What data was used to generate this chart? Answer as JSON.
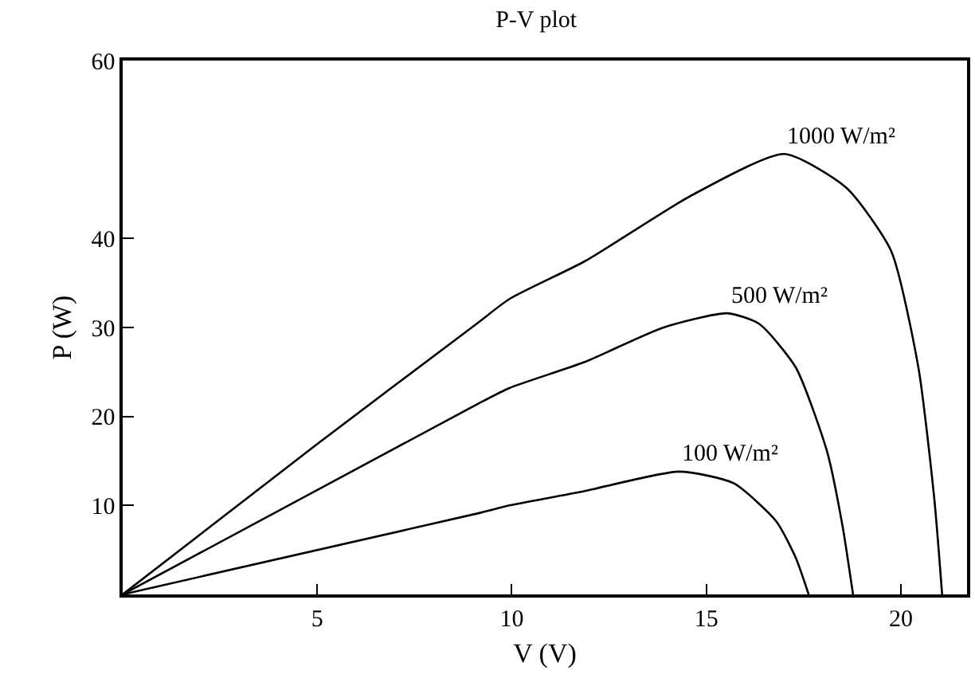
{
  "chart_data": {
    "type": "line",
    "title": "P-V plot",
    "xlabel": "V (V)",
    "ylabel": "P (W)",
    "xlim": [
      0,
      21.7
    ],
    "ylim": [
      0,
      60
    ],
    "xticks": [
      5,
      10,
      15,
      20
    ],
    "yticks": [
      10,
      20,
      30,
      40,
      60
    ],
    "grid": false,
    "legend": false,
    "marker": "none",
    "line_style": "solid",
    "series": [
      {
        "name": "1000 W/m²",
        "color": "#000000",
        "x": [
          0,
          5,
          9.12,
          9.94,
          11.9,
          14.6,
          17.0,
          18.6,
          19.75,
          20.45,
          20.86,
          21.06
        ],
        "values": [
          0,
          16.9,
          30.5,
          33.2,
          37.5,
          44.8,
          49.5,
          45.7,
          38.6,
          25.5,
          10.7,
          0
        ]
      },
      {
        "name": "500 W/m²",
        "color": "#000000",
        "x": [
          0,
          9.12,
          9.94,
          11.86,
          13.9,
          15.54,
          16.36,
          17.3,
          18.1,
          18.5,
          18.77
        ],
        "values": [
          0,
          21.4,
          23.2,
          26.1,
          30.0,
          31.6,
          30.4,
          25.5,
          16.1,
          7.7,
          0
        ]
      },
      {
        "name": "100 W/m²",
        "color": "#000000",
        "x": [
          0,
          9.12,
          9.94,
          11.86,
          14.3,
          15.7,
          16.8,
          17.3,
          17.63
        ],
        "values": [
          0,
          9.1,
          10.0,
          11.6,
          13.8,
          12.5,
          8.2,
          4.1,
          0
        ]
      }
    ]
  }
}
